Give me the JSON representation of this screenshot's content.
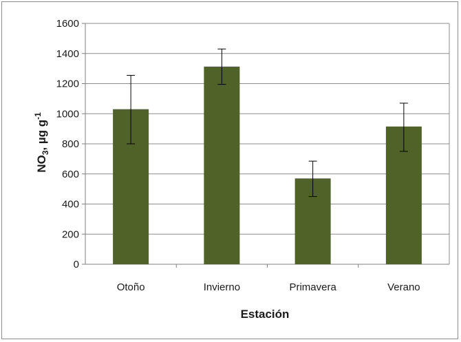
{
  "chart_data": {
    "type": "bar",
    "categories": [
      "Otoño",
      "Invierno",
      "Primavera",
      "Verano"
    ],
    "values": [
      1030,
      1313,
      570,
      915
    ],
    "error_low": [
      800,
      1195,
      450,
      750
    ],
    "error_high": [
      1255,
      1430,
      685,
      1070
    ],
    "xlabel": "Estación",
    "ylabel": {
      "main": "NO",
      "subscript": "3",
      "unit": ", µg g",
      "superscript": "-1"
    },
    "ylim": [
      0,
      1600
    ],
    "yticks": [
      "0",
      "200",
      "400",
      "600",
      "800",
      "1000",
      "1200",
      "1400",
      "1600"
    ],
    "grid": true,
    "legend": "none",
    "colors": {
      "bar": "#4f6228",
      "grid": "#8c8c8c",
      "axis": "#7f7f7f",
      "error": "#000000"
    }
  }
}
